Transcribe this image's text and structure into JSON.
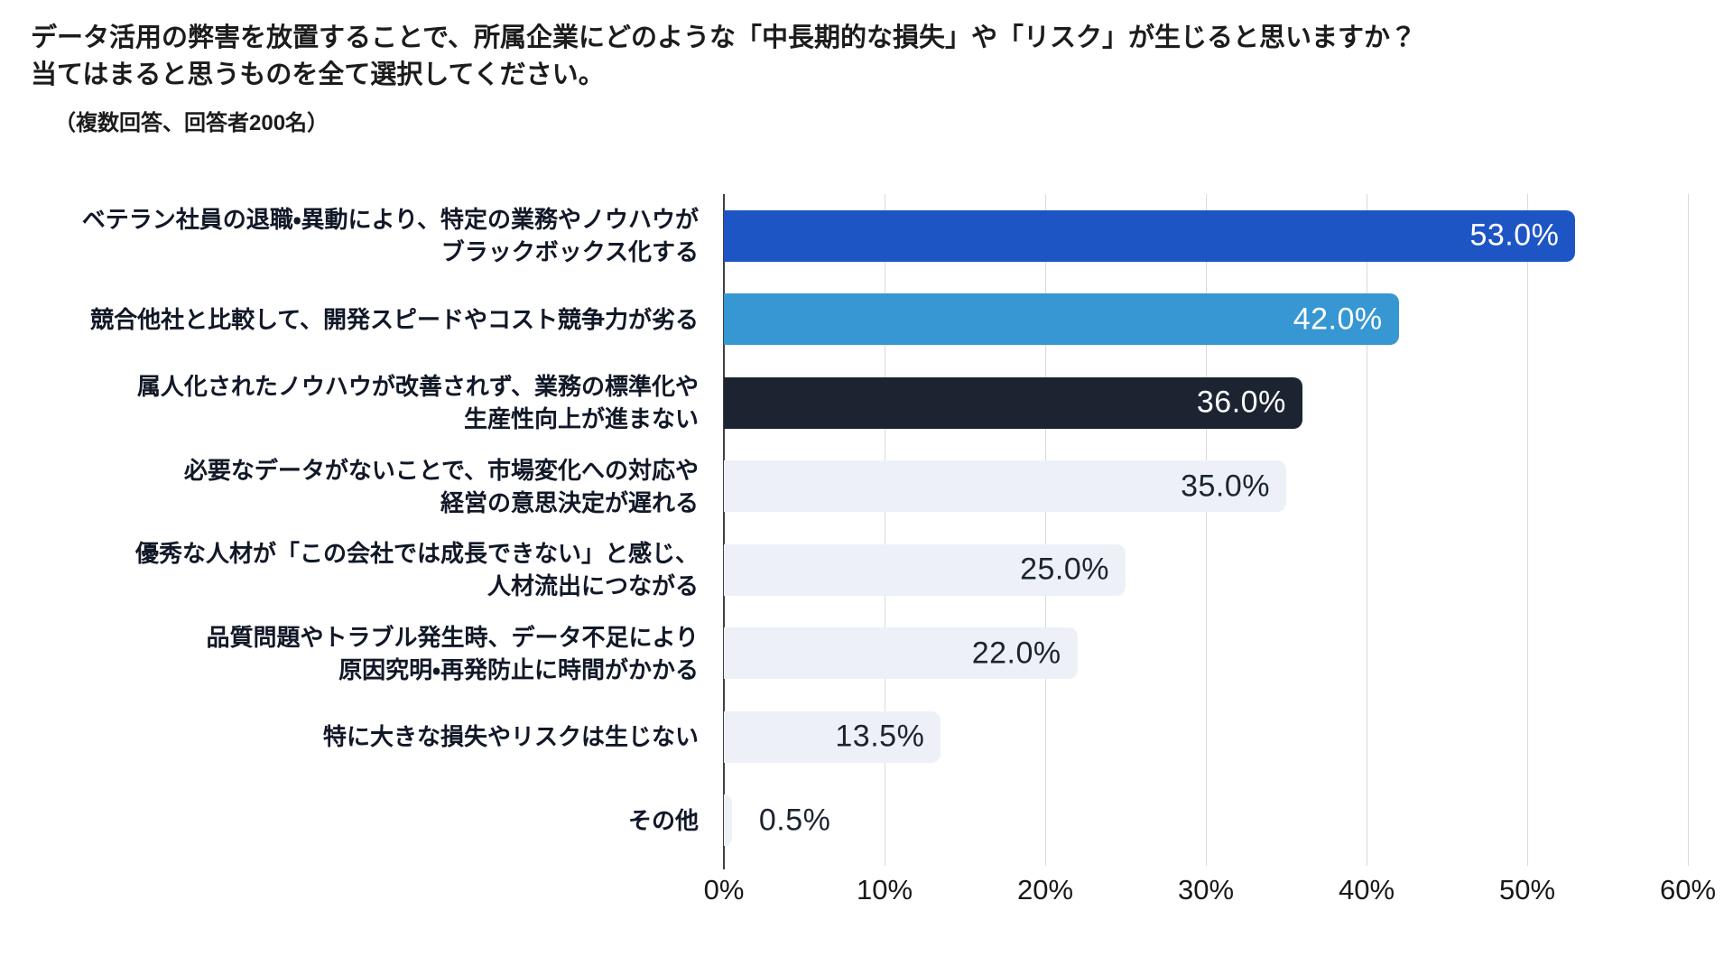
{
  "page": {
    "title_line1": "データ活用の弊害を放置することで、所属企業にどのような「中長期的な損失」や「リスク」が生じると思いますか？",
    "title_line2": "当てはまると思うものを全て選択してください。",
    "subtitle": "（複数回答、回答者200名）"
  },
  "colors": {
    "bar_blue": "#1e55c4",
    "bar_light_blue": "#3697d3",
    "bar_dark_navy": "#1c2431",
    "bar_light_gray": "#edf1f7",
    "value_text_light": "#ffffff",
    "value_text_dark": "#1b2430",
    "gridline": "#d9dadc",
    "axis_line": "#3f4044",
    "text": "#1c1c1c"
  },
  "chart_data": {
    "type": "bar",
    "orientation": "horizontal",
    "title": "データ活用の弊害を放置することで、所属企業にどのような「中長期的な損失」や「リスク」が生じると思いますか？当てはまると思うものを全て選択してください。",
    "subtitle": "（複数回答、回答者200名）",
    "xlabel": "",
    "ylabel": "",
    "xlim": [
      0,
      60
    ],
    "grid": true,
    "legend": false,
    "x_ticks": [
      "0%",
      "10%",
      "20%",
      "30%",
      "40%",
      "50%",
      "60%"
    ],
    "categories": [
      "ベテラン社員の退職・異動により、特定の業務やノウハウがブラックボックス化する",
      "競合他社と比較して、開発スピードやコスト競争力が劣る",
      "属人化されたノウハウが改善されず、業務の標準化や生産性向上が進まない",
      "必要なデータがないことで、市場変化への対応や経営の意思決定が遅れる",
      "優秀な人材が「この会社では成長できない」と感じ、人材流出につながる",
      "品質問題やトラブル発生時、データ不足により原因究明・再発防止に時間がかかる",
      "特に大きな損失やリスクは生じない",
      "その他"
    ],
    "values": [
      53.0,
      42.0,
      36.0,
      35.0,
      25.0,
      22.0,
      13.5,
      0.5
    ],
    "items": [
      {
        "label_line1": "ベテラン社員の退職・異動により、特定の業務やノウハウが",
        "label_line2": "ブラックボックス化する",
        "value": 53.0,
        "value_label": "53.0%",
        "color": "#1e55c4",
        "value_color": "#ffffff",
        "value_inside": true
      },
      {
        "label_line1": "競合他社と比較して、開発スピードやコスト競争力が劣る",
        "label_line2": "",
        "value": 42.0,
        "value_label": "42.0%",
        "color": "#3697d3",
        "value_color": "#ffffff",
        "value_inside": true
      },
      {
        "label_line1": "属人化されたノウハウが改善されず、業務の標準化や",
        "label_line2": "生産性向上が進まない",
        "value": 36.0,
        "value_label": "36.0%",
        "color": "#1c2431",
        "value_color": "#ffffff",
        "value_inside": true
      },
      {
        "label_line1": "必要なデータがないことで、市場変化への対応や",
        "label_line2": "経営の意思決定が遅れる",
        "value": 35.0,
        "value_label": "35.0%",
        "color": "#edf1f7",
        "value_color": "#1b2430",
        "value_inside": true
      },
      {
        "label_line1": "優秀な人材が「この会社では成長できない」と感じ、",
        "label_line2": "人材流出につながる",
        "value": 25.0,
        "value_label": "25.0%",
        "color": "#edf1f7",
        "value_color": "#1b2430",
        "value_inside": true
      },
      {
        "label_line1": "品質問題やトラブル発生時、データ不足により",
        "label_line2": "原因究明・再発防止に時間がかかる",
        "value": 22.0,
        "value_label": "22.0%",
        "color": "#edf1f7",
        "value_color": "#1b2430",
        "value_inside": true
      },
      {
        "label_line1": "特に大きな損失やリスクは生じない",
        "label_line2": "",
        "value": 13.5,
        "value_label": "13.5%",
        "color": "#edf1f7",
        "value_color": "#1b2430",
        "value_inside": true
      },
      {
        "label_line1": "その他",
        "label_line2": "",
        "value": 0.5,
        "value_label": "0.5%",
        "color": "#edf1f7",
        "value_color": "#1b2430",
        "value_inside": false
      }
    ]
  }
}
